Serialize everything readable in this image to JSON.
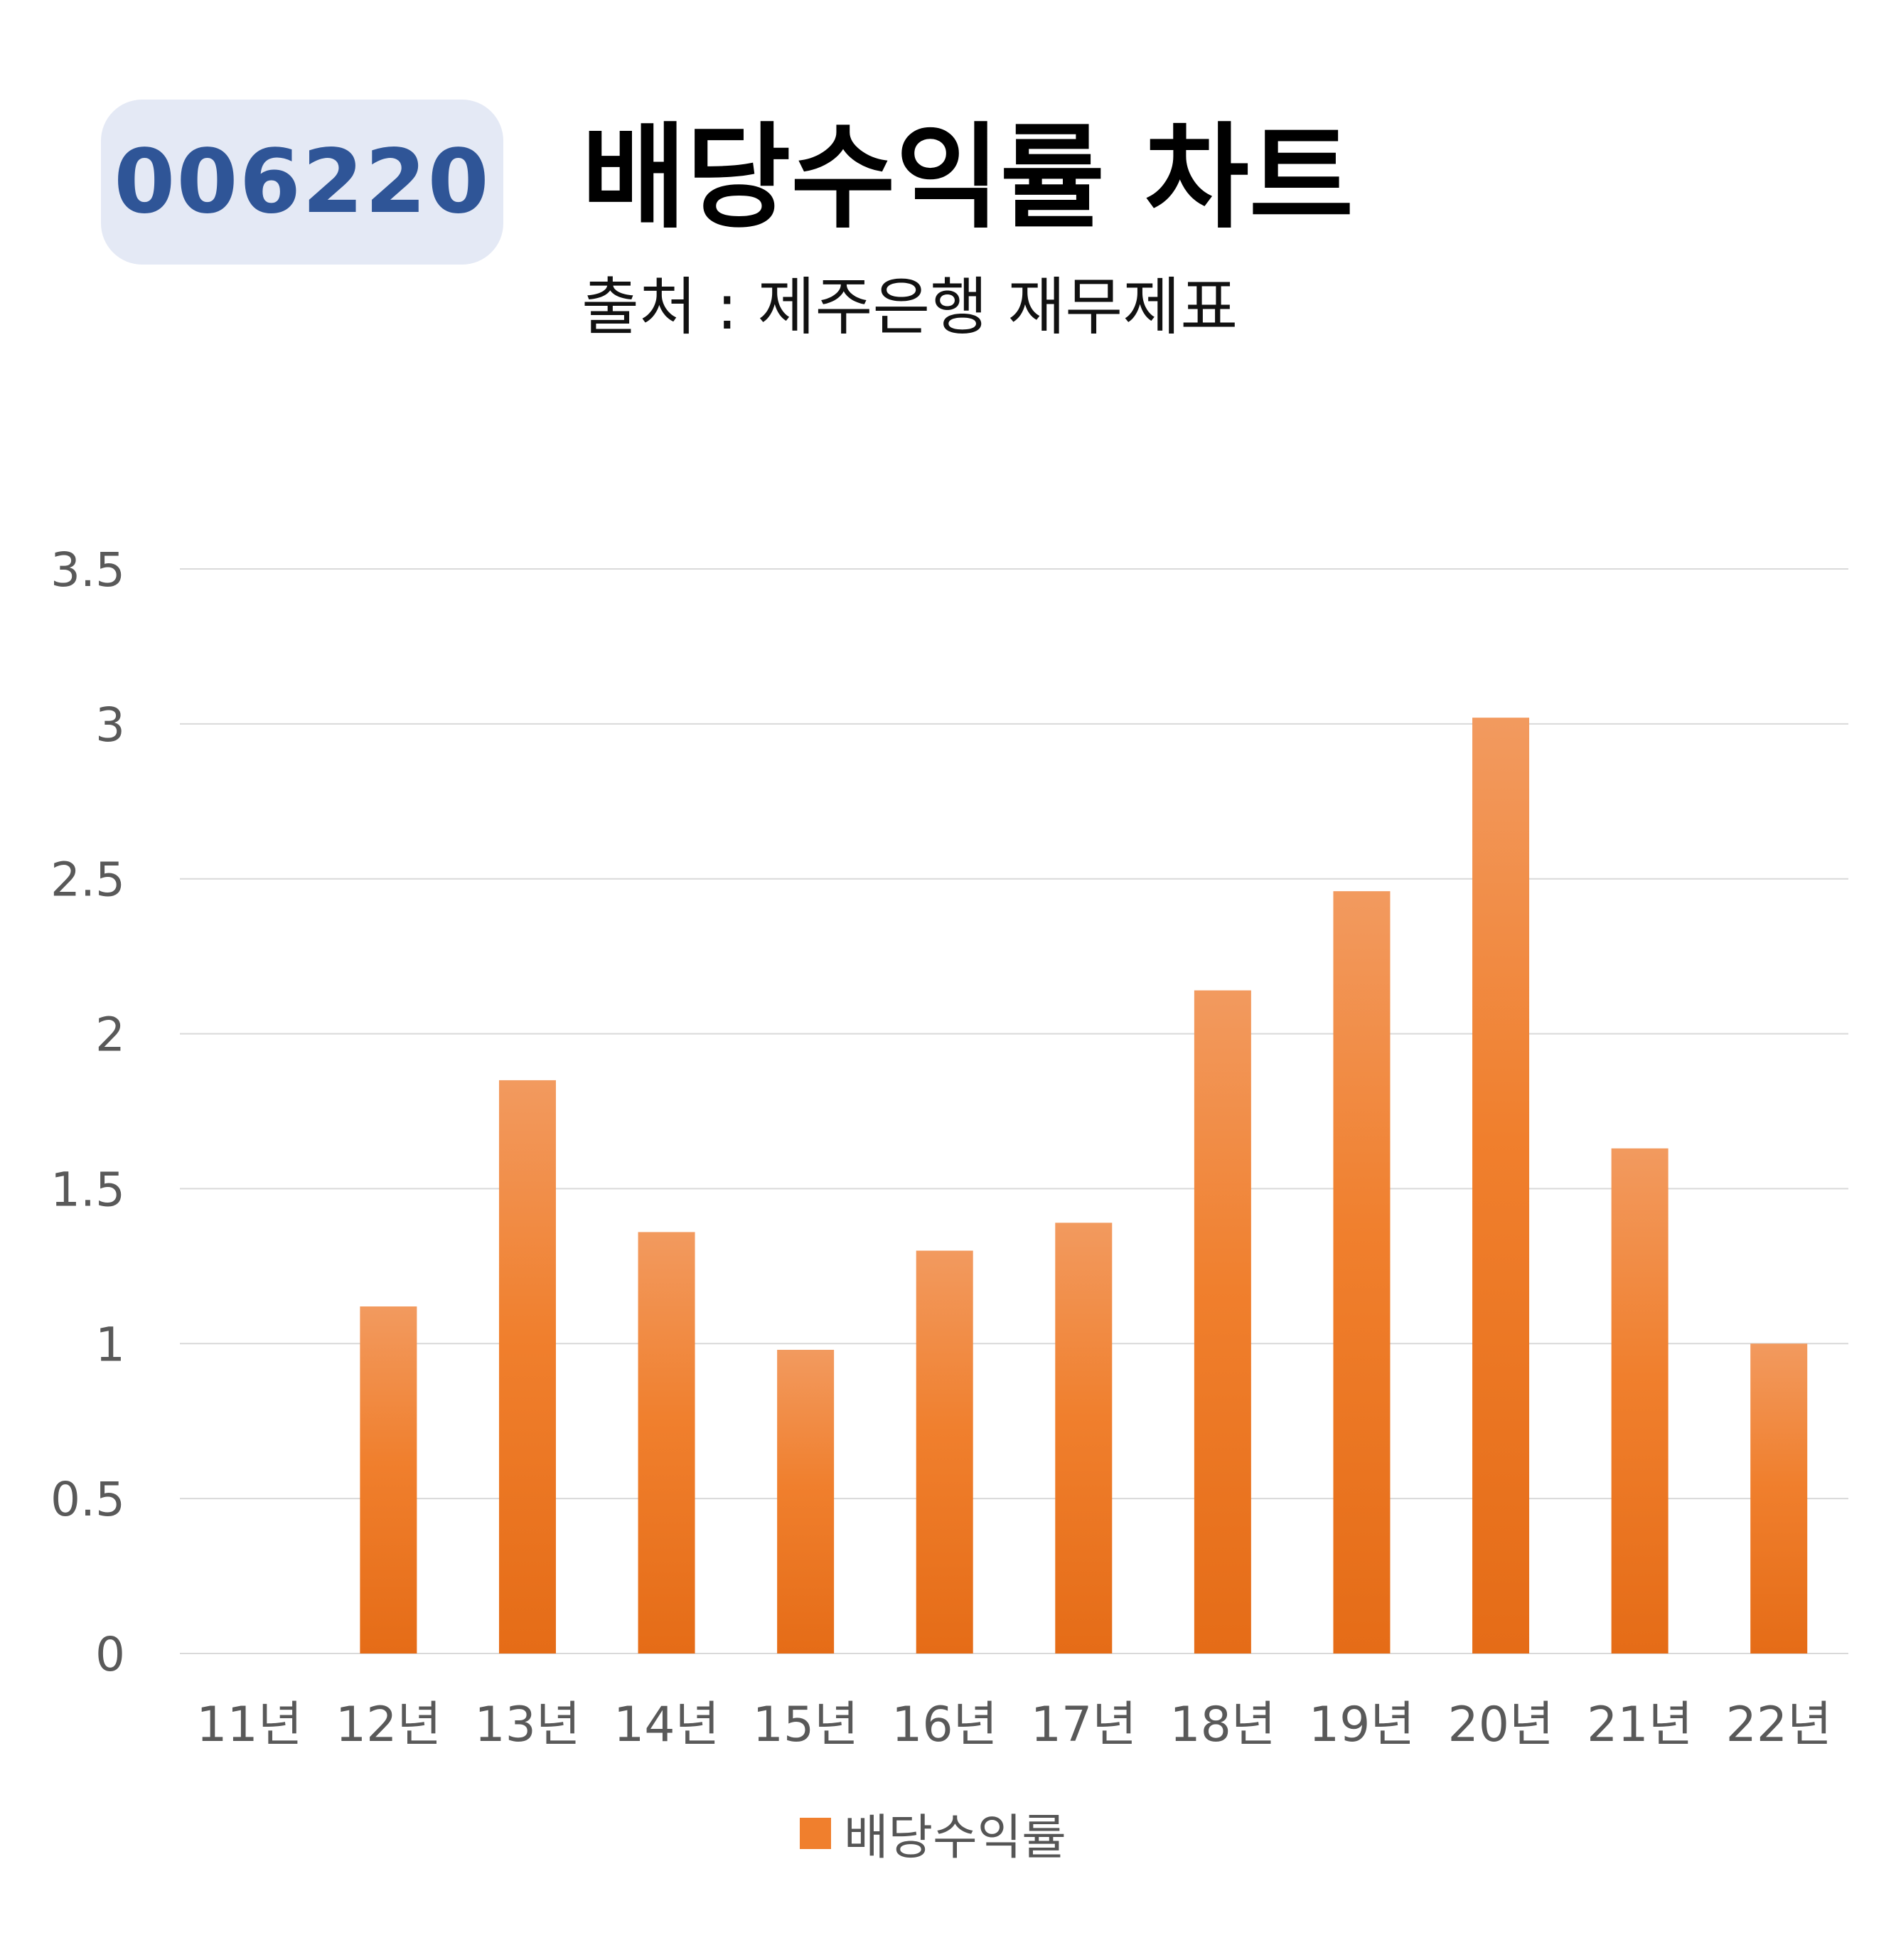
{
  "header": {
    "code": "006220",
    "title": "배당수익률 차트",
    "subtitle": "출처 : 제주은행 재무제표"
  },
  "colors": {
    "bar": "#f07f2d",
    "bar_top": "#f29a5f",
    "bar_bottom": "#e56c17",
    "grid": "#d9d9d9",
    "axis_text": "#595959",
    "badge_bg": "#e4e9f5",
    "badge_text": "#2f5597"
  },
  "chart_data": {
    "type": "bar",
    "categories": [
      "11년",
      "12년",
      "13년",
      "14년",
      "15년",
      "16년",
      "17년",
      "18년",
      "19년",
      "20년",
      "21년",
      "22년"
    ],
    "series": [
      {
        "name": "배당수익률",
        "values": [
          null,
          1.12,
          1.85,
          1.36,
          0.98,
          1.3,
          1.39,
          2.14,
          2.46,
          3.02,
          1.63,
          1.0
        ]
      }
    ],
    "ylim": [
      0,
      3.5
    ],
    "yticks": [
      0,
      0.5,
      1,
      1.5,
      2,
      2.5,
      3,
      3.5
    ],
    "ytick_labels": [
      "0",
      "0.5",
      "1",
      "1.5",
      "2",
      "2.5",
      "3",
      "3.5"
    ],
    "grid": true,
    "legend": "bottom"
  }
}
